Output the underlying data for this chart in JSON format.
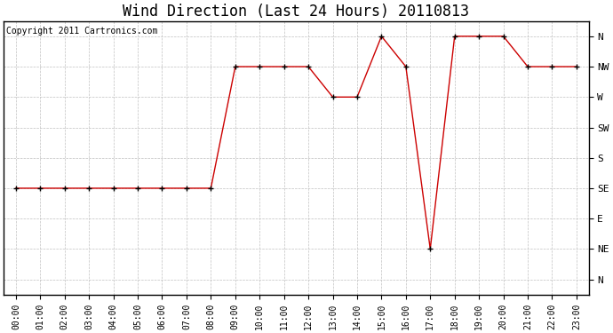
{
  "title": "Wind Direction (Last 24 Hours) 20110813",
  "copyright_text": "Copyright 2011 Cartronics.com",
  "line_color": "#cc0000",
  "marker": "+",
  "marker_color": "#000000",
  "background_color": "#ffffff",
  "plot_bg_color": "#ffffff",
  "grid_color": "#c0c0c0",
  "hours": [
    0,
    1,
    2,
    3,
    4,
    5,
    6,
    7,
    8,
    9,
    10,
    11,
    12,
    13,
    14,
    15,
    16,
    17,
    18,
    19,
    20,
    21,
    22,
    23
  ],
  "wind_values": [
    3,
    3,
    3,
    3,
    3,
    3,
    3,
    3,
    3,
    7,
    7,
    7,
    7,
    6,
    6,
    8,
    7,
    1,
    8,
    8,
    8,
    7,
    7,
    7
  ],
  "ytick_positions": [
    8,
    7,
    6,
    5,
    4,
    3,
    2,
    1,
    0
  ],
  "ytick_labels": [
    "N",
    "NW",
    "W",
    "SW",
    "S",
    "SE",
    "E",
    "NE",
    "N"
  ],
  "ylim": [
    -0.5,
    8.5
  ],
  "xlim": [
    -0.5,
    23.5
  ],
  "xtick_labels": [
    "00:00",
    "01:00",
    "02:00",
    "03:00",
    "04:00",
    "05:00",
    "06:00",
    "07:00",
    "08:00",
    "09:00",
    "10:00",
    "11:00",
    "12:00",
    "13:00",
    "14:00",
    "15:00",
    "16:00",
    "17:00",
    "18:00",
    "19:00",
    "20:00",
    "21:00",
    "22:00",
    "23:00"
  ],
  "title_fontsize": 12,
  "copyright_fontsize": 7,
  "axis_fontsize": 7,
  "ytick_fontsize": 8
}
